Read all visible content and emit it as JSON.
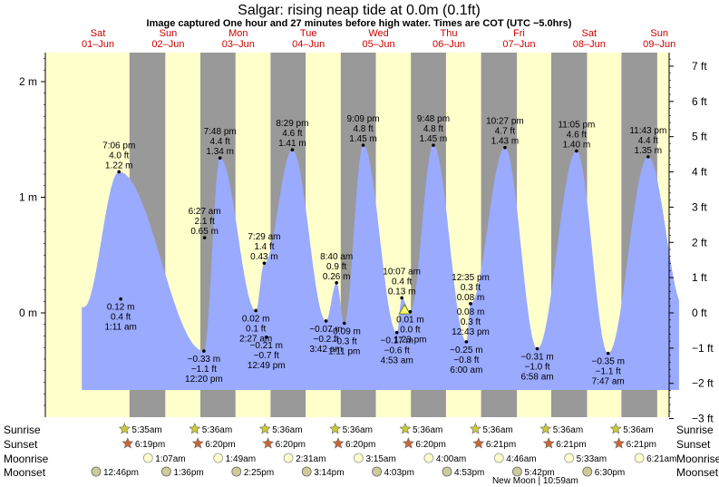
{
  "header": {
    "title": "Salgar: rising  neap tide at 0.0m (0.1ft)",
    "subtitle": "Image captured One hour and 27 minutes before high water. Times are COT (UTC −5.0hrs)"
  },
  "chart_data": {
    "type": "area",
    "days": [
      {
        "name": "Sat",
        "date": "01–Jun"
      },
      {
        "name": "Sun",
        "date": "02–Jun"
      },
      {
        "name": "Mon",
        "date": "03–Jun"
      },
      {
        "name": "Tue",
        "date": "04–Jun"
      },
      {
        "name": "Wed",
        "date": "05–Jun"
      },
      {
        "name": "Thu",
        "date": "06–Jun"
      },
      {
        "name": "Fri",
        "date": "07–Jun"
      },
      {
        "name": "Sat",
        "date": "08–Jun"
      },
      {
        "name": "Sun",
        "date": "09–Jun"
      }
    ],
    "y_left_ticks": [
      {
        "v": 2,
        "label": "2 m"
      },
      {
        "v": 1,
        "label": "1 m"
      },
      {
        "v": 0,
        "label": "0 m"
      }
    ],
    "y_right_ticks": [
      {
        "v": 7,
        "label": "7 ft"
      },
      {
        "v": 6,
        "label": "6 ft"
      },
      {
        "v": 5,
        "label": "5 ft"
      },
      {
        "v": 4,
        "label": "4 ft"
      },
      {
        "v": 3,
        "label": "3 ft"
      },
      {
        "v": 2,
        "label": "2 ft"
      },
      {
        "v": 1,
        "label": "1 ft"
      },
      {
        "v": 0,
        "label": "0 ft"
      },
      {
        "v": -1,
        "label": "−1 ft"
      },
      {
        "v": -2,
        "label": "−2 ft"
      },
      {
        "v": -3,
        "label": "−3 ft"
      }
    ],
    "ylim_m": [
      -0.88,
      2.27
    ],
    "x_range_days": [
      0,
      8.4
    ],
    "nights": [
      [
        0.45,
        0.96
      ],
      [
        1.46,
        1.96
      ],
      [
        2.46,
        2.96
      ],
      [
        3.46,
        3.96
      ],
      [
        4.46,
        4.96
      ],
      [
        5.46,
        5.97
      ],
      [
        6.46,
        6.97
      ],
      [
        7.46,
        7.97
      ]
    ],
    "tides": [
      {
        "t": 0.325,
        "h": 0.12,
        "m": "0.12 m",
        "ft": "0.4 ft",
        "time": "1:11 am",
        "kind": "low"
      },
      {
        "t": 0.3,
        "h": 1.22,
        "m": "1.22 m",
        "ft": "4.0 ft",
        "time": "7:06 pm",
        "kind": "high"
      },
      {
        "t": 1.51,
        "h": -0.33,
        "m": "−0.33 m",
        "ft": "−1.1 ft",
        "time": "12:20 pm",
        "kind": "low"
      },
      {
        "t": 1.52,
        "h": 0.65,
        "m": "0.65 m",
        "ft": "2.1 ft",
        "time": "6:27 am",
        "kind": "high"
      },
      {
        "t": 1.74,
        "h": 1.34,
        "m": "1.34 m",
        "ft": "4.4 ft",
        "time": "7:48 pm",
        "kind": "high"
      },
      {
        "t": 2.25,
        "h": 0.02,
        "m": "0.02 m",
        "ft": "0.1 ft",
        "time": "2:27 am",
        "kind": "low"
      },
      {
        "t": 2.4,
        "h": -0.21,
        "m": "−0.21 m",
        "ft": "−0.7 ft",
        "time": "12:49 pm",
        "kind": "low"
      },
      {
        "t": 2.37,
        "h": 0.43,
        "m": "0.43 m",
        "ft": "1.4 ft",
        "time": "7:29 am",
        "kind": "high"
      },
      {
        "t": 2.77,
        "h": 1.41,
        "m": "1.41 m",
        "ft": "4.6 ft",
        "time": "8:29 pm",
        "kind": "high"
      },
      {
        "t": 3.25,
        "h": -0.07,
        "m": "−0.07 m",
        "ft": "−0.2 ft",
        "time": "3:42 am",
        "kind": "low"
      },
      {
        "t": 3.4,
        "h": 0.26,
        "m": "0.26 m",
        "ft": "0.9 ft",
        "time": "8:40 am",
        "kind": "high"
      },
      {
        "t": 3.51,
        "h": -0.09,
        "m": "−0.09 m",
        "ft": "−0.3 ft",
        "time": "1:11 pm",
        "kind": "low"
      },
      {
        "t": 3.78,
        "h": 1.45,
        "m": "1.45 m",
        "ft": "4.8 ft",
        "time": "9:09 pm",
        "kind": "high"
      },
      {
        "t": 4.26,
        "h": -0.17,
        "m": "−0.17 m",
        "ft": "−0.6 ft",
        "time": "4:53 am",
        "kind": "low"
      },
      {
        "t": 4.33,
        "h": 0.13,
        "m": "0.13 m",
        "ft": "0.4 ft",
        "time": "10:07 am",
        "kind": "high"
      },
      {
        "t": 4.45,
        "h": 0.01,
        "m": "0.01 m",
        "ft": "0.0 ft",
        "time": "1:23 pm",
        "kind": "low"
      },
      {
        "t": 4.78,
        "h": 1.45,
        "m": "1.45 m",
        "ft": "4.8 ft",
        "time": "9:48 pm",
        "kind": "high"
      },
      {
        "t": 5.25,
        "h": -0.25,
        "m": "−0.25 m",
        "ft": "−0.8 ft",
        "time": "6:00 am",
        "kind": "low"
      },
      {
        "t": 5.31,
        "h": 0.08,
        "m": "0.08 m",
        "ft": "0.3 ft",
        "time": "12:35 pm",
        "kind": "high"
      },
      {
        "t": 5.31,
        "h": 0.08,
        "m": "0.08 m",
        "ft": "0.3 ft",
        "time": "12:43 pm",
        "kind": "low"
      },
      {
        "t": 5.8,
        "h": 1.43,
        "m": "1.43 m",
        "ft": "4.7 ft",
        "time": "10:27 pm",
        "kind": "high"
      },
      {
        "t": 6.26,
        "h": -0.31,
        "m": "−0.31 m",
        "ft": "−1.0 ft",
        "time": "6:58 am",
        "kind": "low"
      },
      {
        "t": 6.82,
        "h": 1.4,
        "m": "1.40 m",
        "ft": "4.6 ft",
        "time": "11:05 pm",
        "kind": "high"
      },
      {
        "t": 7.27,
        "h": -0.35,
        "m": "−0.35 m",
        "ft": "−1.1 ft",
        "time": "7:47 am",
        "kind": "low"
      },
      {
        "t": 7.84,
        "h": 1.35,
        "m": "1.35 m",
        "ft": "4.4 ft",
        "time": "11:43 pm",
        "kind": "high"
      }
    ],
    "current": {
      "t": 4.37,
      "h": 0.0,
      "label": "0.0m (0.1ft)"
    },
    "legend": {
      "rows": [
        "Sunrise",
        "Sunset",
        "Moonrise",
        "Moonset"
      ],
      "sunrise": [
        {
          "t": 1.0,
          "time": "5:35am"
        },
        {
          "t": 2.0,
          "time": "5:36am"
        },
        {
          "t": 3.0,
          "time": "5:36am"
        },
        {
          "t": 4.0,
          "time": "5:36am"
        },
        {
          "t": 5.0,
          "time": "5:36am"
        },
        {
          "t": 6.0,
          "time": "5:36am"
        },
        {
          "t": 7.0,
          "time": "5:36am"
        },
        {
          "t": 8.0,
          "time": "5:36am"
        }
      ],
      "sunset": [
        {
          "t": 0.45,
          "time": "6:19pm"
        },
        {
          "t": 1.45,
          "time": "6:20pm"
        },
        {
          "t": 2.45,
          "time": "6:20pm"
        },
        {
          "t": 3.45,
          "time": "6:20pm"
        },
        {
          "t": 4.45,
          "time": "6:20pm"
        },
        {
          "t": 5.45,
          "time": "6:21pm"
        },
        {
          "t": 6.45,
          "time": "6:21pm"
        },
        {
          "t": 7.45,
          "time": "6:21pm"
        }
      ],
      "moonrise": [
        {
          "t": 0.74,
          "time": "1:07am"
        },
        {
          "t": 1.74,
          "time": "1:49am"
        },
        {
          "t": 2.74,
          "time": "2:31am"
        },
        {
          "t": 3.74,
          "time": "3:15am"
        },
        {
          "t": 4.74,
          "time": "4:00am"
        },
        {
          "t": 5.74,
          "time": "4:46am"
        },
        {
          "t": 6.74,
          "time": "5:33am"
        },
        {
          "t": 7.74,
          "time": "6:21am"
        }
      ],
      "moonset": [
        {
          "t": 0.0,
          "time": "12:46pm"
        },
        {
          "t": 1.0,
          "time": "1:36pm"
        },
        {
          "t": 2.0,
          "time": "2:25pm"
        },
        {
          "t": 3.0,
          "time": "3:14pm"
        },
        {
          "t": 4.0,
          "time": "4:03pm"
        },
        {
          "t": 5.0,
          "time": "4:53pm"
        },
        {
          "t": 6.0,
          "time": "5:42pm"
        },
        {
          "t": 7.0,
          "time": "6:30pm"
        }
      ],
      "note": "New Moon | 10:59am"
    },
    "colors": {
      "day": "#ffffcc",
      "night": "#999999",
      "water": "#99aaff",
      "daylabel": "#cc0000",
      "sunset_star": "#cc6633",
      "sunrise_star": "#cccc33",
      "moon": "#ffffcc",
      "moonset_fill": "#cccc99"
    }
  }
}
